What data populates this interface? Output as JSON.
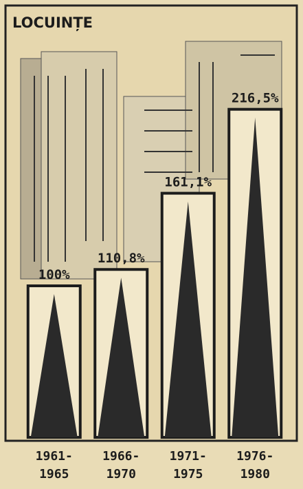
{
  "chart_data": {
    "type": "bar",
    "title": "LOCUINȚE",
    "categories": [
      "1961-\n1965",
      "1966-\n1970",
      "1971-\n1975",
      "1976-\n1980"
    ],
    "values": [
      100,
      110.8,
      161.1,
      216.5
    ],
    "value_labels": [
      "100%",
      "110,8%",
      "161,1%",
      "216,5%"
    ],
    "color": "#2a2a2a"
  }
}
